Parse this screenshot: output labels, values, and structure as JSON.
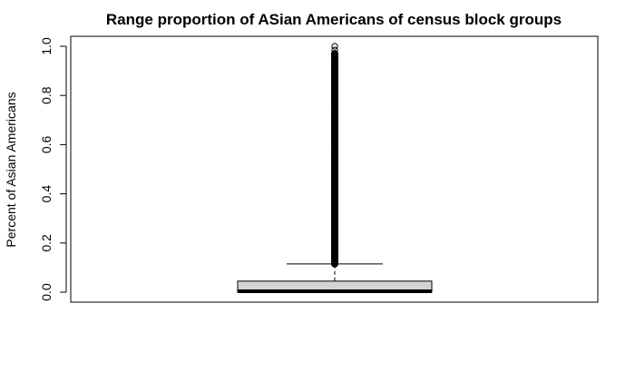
{
  "chart_data": {
    "type": "boxplot",
    "title": "Range proportion of ASian Americans of census block groups",
    "xlabel": "",
    "ylabel": "Percent of Asian Americans",
    "ylim": [
      0.0,
      1.0
    ],
    "yticks": [
      0.0,
      0.2,
      0.4,
      0.6,
      0.8,
      1.0
    ],
    "ytick_labels": [
      "0.0",
      "0.2",
      "0.4",
      "0.6",
      "0.8",
      "1.0"
    ],
    "grid": false,
    "box": {
      "min": 0.0,
      "q1": 0.0,
      "median": 0.0,
      "q3": 0.045,
      "whisker_high": 0.115,
      "outliers_range": [
        0.115,
        0.97
      ],
      "max_outlier": 1.0
    },
    "colors": {
      "box_fill": "#d3d3d3",
      "line": "#000000"
    }
  }
}
